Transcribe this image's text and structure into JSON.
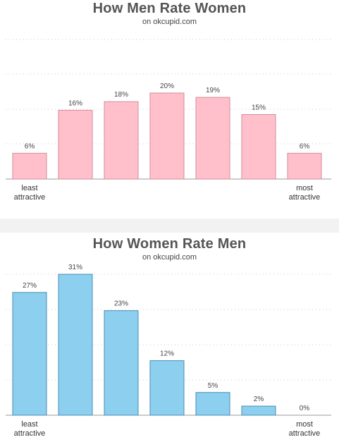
{
  "chart_data": [
    {
      "type": "bar",
      "title": "How Men Rate Women",
      "subtitle": "on okcupid.com",
      "categories": [
        "1",
        "2",
        "3",
        "4",
        "5",
        "6",
        "7"
      ],
      "values": [
        6,
        16,
        18,
        20,
        19,
        15,
        6
      ],
      "labels": [
        "6%",
        "16%",
        "18%",
        "20%",
        "19%",
        "15%",
        "6%"
      ],
      "ylim": [
        0,
        32
      ],
      "grid": true,
      "bar_color": "#ffc0cb",
      "bar_edge": "#d58a98",
      "left_label": [
        "least",
        "attractive"
      ],
      "right_label": [
        "most",
        "attractive"
      ]
    },
    {
      "type": "bar",
      "title": "How Women Rate Men",
      "subtitle": "on okcupid.com",
      "categories": [
        "1",
        "2",
        "3",
        "4",
        "5",
        "6",
        "7"
      ],
      "values": [
        27,
        31,
        23,
        12,
        5,
        2,
        0
      ],
      "labels": [
        "27%",
        "31%",
        "23%",
        "12%",
        "5%",
        "2%",
        "0%"
      ],
      "ylim": [
        0,
        32
      ],
      "grid": true,
      "bar_color": "#8dcfef",
      "bar_edge": "#4a8eb5",
      "left_label": [
        "least",
        "attractive"
      ],
      "right_label": [
        "most",
        "attractive"
      ]
    }
  ]
}
